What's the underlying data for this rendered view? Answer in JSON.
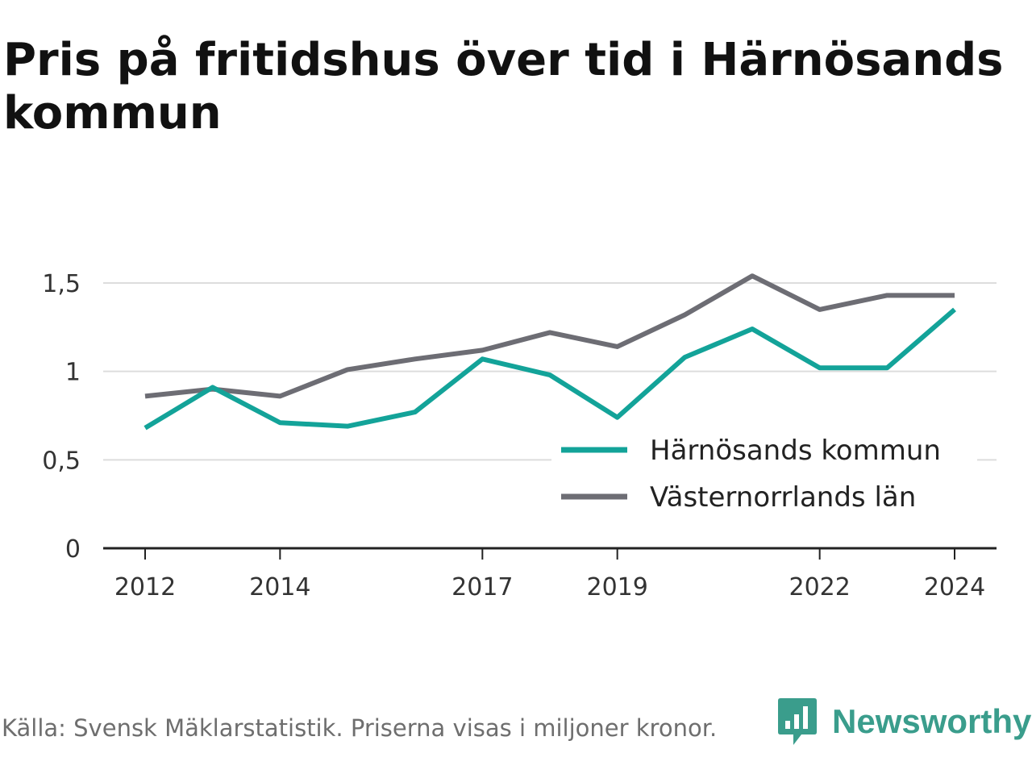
{
  "title": "Pris på fritidshus över tid i Härnösands kommun",
  "source": "Källa: Svensk Mäklarstatistik. Priserna visas i miljoner kronor.",
  "brand": {
    "name": "Newsworthy",
    "icon": "newsworthy-logo-icon",
    "color": "#3a9d8c"
  },
  "chart_data": {
    "type": "line",
    "x": [
      2012,
      2013,
      2014,
      2015,
      2016,
      2017,
      2018,
      2019,
      2020,
      2021,
      2022,
      2023,
      2024
    ],
    "x_ticks": [
      2012,
      2014,
      2017,
      2019,
      2022,
      2024
    ],
    "x_tick_labels": [
      "2012",
      "2014",
      "2017",
      "2019",
      "2022",
      "2024"
    ],
    "ylim": [
      0,
      1.5
    ],
    "y_ticks": [
      0,
      0.5,
      1,
      1.5
    ],
    "y_tick_labels": [
      "0",
      "0,5",
      "1",
      "1,5"
    ],
    "grid": true,
    "legend_position": "bottom-right",
    "series": [
      {
        "name": "Härnösands kommun",
        "color": "#13a399",
        "values": [
          0.68,
          0.91,
          0.71,
          0.69,
          0.77,
          1.07,
          0.98,
          0.74,
          1.08,
          1.24,
          1.02,
          1.02,
          1.35
        ]
      },
      {
        "name": "Västernorrlands län",
        "color": "#6d6d74",
        "values": [
          0.86,
          0.9,
          0.86,
          1.01,
          1.07,
          1.12,
          1.22,
          1.14,
          1.32,
          1.54,
          1.35,
          1.43,
          1.43
        ]
      }
    ]
  }
}
